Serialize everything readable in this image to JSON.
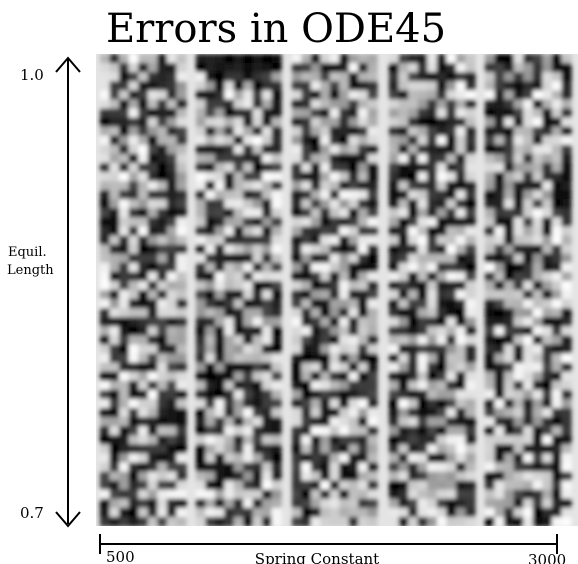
{
  "chart_data": {
    "type": "heatmap",
    "title": "Errors in ODE45",
    "xlabel": "Spring Constant",
    "ylabel": "Equil. Length",
    "ylabel_lines": [
      "Equil.",
      "Length"
    ],
    "xlim": [
      500,
      3000
    ],
    "ylim": [
      0.7,
      1.0
    ],
    "x_tick_labels": [
      "500",
      "3000"
    ],
    "y_tick_labels": [
      "1.0",
      "0.7"
    ],
    "colormap": "grayscale",
    "columns": 5,
    "rows": 52,
    "grid": false,
    "legend": "none"
  },
  "colors": {
    "background": "#ffffff",
    "axis": "#000000",
    "stripe_gap": "#d6d6d6"
  }
}
